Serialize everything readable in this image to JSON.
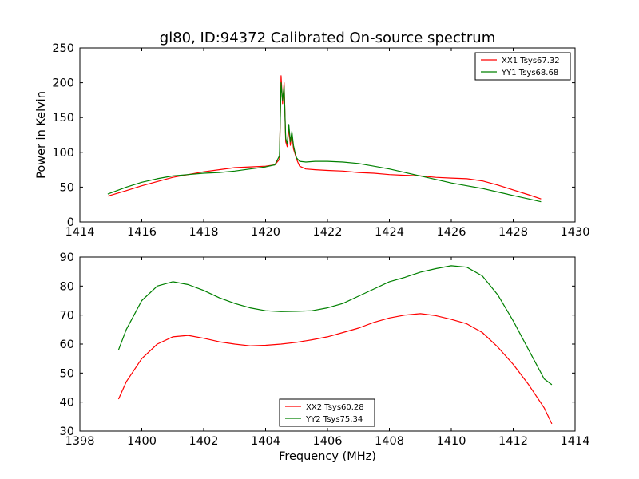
{
  "chart_data": [
    {
      "type": "line",
      "title": "gl80, ID:94372 Calibrated On-source spectrum",
      "xlabel": "",
      "ylabel": "Power in Kelvin",
      "xlim": [
        1414,
        1430
      ],
      "ylim": [
        0,
        250
      ],
      "xticks": [
        "1414",
        "1416",
        "1418",
        "1420",
        "1422",
        "1424",
        "1426",
        "1428",
        "1430"
      ],
      "yticks": [
        "0",
        "50",
        "100",
        "150",
        "200",
        "250"
      ],
      "legend_position": "top-right",
      "series": [
        {
          "name": "XX1 Tsys67.32",
          "color": "#ff0000",
          "x": [
            1414.9,
            1415.5,
            1416.0,
            1416.5,
            1417.0,
            1417.5,
            1418.0,
            1418.5,
            1419.0,
            1419.5,
            1420.0,
            1420.3,
            1420.45,
            1420.5,
            1420.55,
            1420.6,
            1420.65,
            1420.7,
            1420.75,
            1420.8,
            1420.85,
            1420.9,
            1420.95,
            1421.0,
            1421.1,
            1421.3,
            1421.6,
            1422.0,
            1422.5,
            1423.0,
            1423.5,
            1424.0,
            1424.5,
            1425.0,
            1425.5,
            1426.0,
            1426.5,
            1427.0,
            1427.5,
            1428.0,
            1428.5,
            1428.9
          ],
          "y": [
            37,
            45,
            52,
            58,
            64,
            68,
            72,
            75,
            78,
            79,
            80,
            82,
            90,
            210,
            170,
            200,
            115,
            108,
            135,
            110,
            128,
            105,
            98,
            90,
            80,
            76,
            75,
            74,
            73,
            71,
            70,
            68,
            67,
            66,
            64,
            63,
            62,
            59,
            53,
            46,
            39,
            33
          ]
        },
        {
          "name": "YY1 Tsys68.68",
          "color": "#008000",
          "x": [
            1414.9,
            1415.5,
            1416.0,
            1416.5,
            1417.0,
            1417.5,
            1418.0,
            1418.5,
            1419.0,
            1419.5,
            1420.0,
            1420.3,
            1420.45,
            1420.5,
            1420.55,
            1420.6,
            1420.65,
            1420.7,
            1420.75,
            1420.8,
            1420.85,
            1420.9,
            1420.95,
            1421.0,
            1421.1,
            1421.3,
            1421.6,
            1422.0,
            1422.5,
            1423.0,
            1423.5,
            1424.0,
            1424.5,
            1425.0,
            1425.5,
            1426.0,
            1426.5,
            1427.0,
            1427.5,
            1428.0,
            1428.5,
            1428.9
          ],
          "y": [
            40,
            50,
            57,
            62,
            66,
            68,
            70,
            71,
            73,
            76,
            79,
            82,
            95,
            200,
            175,
            195,
            120,
            112,
            140,
            115,
            130,
            110,
            100,
            92,
            87,
            86,
            87,
            87,
            86,
            84,
            80,
            76,
            71,
            66,
            61,
            56,
            52,
            48,
            43,
            38,
            33,
            29
          ]
        }
      ]
    },
    {
      "type": "line",
      "title": "",
      "xlabel": "Frequency (MHz)",
      "ylabel": "",
      "xlim": [
        1398,
        1414
      ],
      "ylim": [
        30,
        90
      ],
      "xticks": [
        "1398",
        "1400",
        "1402",
        "1404",
        "1406",
        "1408",
        "1410",
        "1412",
        "1414"
      ],
      "yticks": [
        "30",
        "40",
        "50",
        "60",
        "70",
        "80",
        "90"
      ],
      "legend_position": "bottom-center",
      "series": [
        {
          "name": "XX2 Tsys60.28",
          "color": "#ff0000",
          "x": [
            1399.25,
            1399.5,
            1400.0,
            1400.5,
            1401.0,
            1401.5,
            1402.0,
            1402.5,
            1403.0,
            1403.5,
            1404.0,
            1404.5,
            1405.0,
            1405.5,
            1406.0,
            1406.5,
            1407.0,
            1407.5,
            1408.0,
            1408.5,
            1409.0,
            1409.5,
            1410.0,
            1410.5,
            1411.0,
            1411.5,
            1412.0,
            1412.5,
            1413.0,
            1413.25
          ],
          "y": [
            41,
            47,
            55,
            60,
            62.5,
            63,
            62,
            60.8,
            60,
            59.4,
            59.6,
            60,
            60.6,
            61.5,
            62.5,
            64,
            65.5,
            67.5,
            69,
            70,
            70.5,
            69.8,
            68.5,
            67,
            64,
            59,
            53,
            46,
            38,
            32.5
          ]
        },
        {
          "name": "YY2 Tsys75.34",
          "color": "#008000",
          "x": [
            1399.25,
            1399.5,
            1400.0,
            1400.5,
            1401.0,
            1401.5,
            1402.0,
            1402.5,
            1403.0,
            1403.5,
            1404.0,
            1404.5,
            1405.0,
            1405.5,
            1406.0,
            1406.5,
            1407.0,
            1407.5,
            1408.0,
            1408.5,
            1409.0,
            1409.5,
            1410.0,
            1410.5,
            1411.0,
            1411.5,
            1412.0,
            1412.5,
            1413.0,
            1413.25
          ],
          "y": [
            58,
            65,
            75,
            80,
            81.5,
            80.5,
            78.5,
            76,
            74,
            72.5,
            71.5,
            71.2,
            71.3,
            71.5,
            72.5,
            74,
            76.5,
            79,
            81.5,
            83,
            84.8,
            86,
            87,
            86.5,
            83.5,
            77,
            68,
            58,
            48,
            46
          ]
        }
      ]
    }
  ]
}
